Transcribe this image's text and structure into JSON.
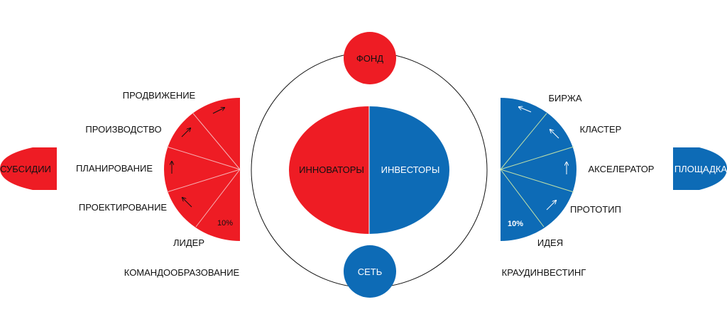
{
  "colors": {
    "red": "#ee1c24",
    "blue": "#0d6bb6",
    "line": "#111111"
  },
  "center": {
    "left_label": "ИННОВАТОРЫ",
    "right_label": "ИНВЕСТОРЫ",
    "top_node": "ФОНД",
    "bottom_node": "СЕТЬ"
  },
  "left_fan": {
    "side_node": "СУБСИДИИ",
    "percent_label": "10%",
    "stages": [
      "ЛИДЕР",
      "ПРОЕКТИРОВАНИЕ",
      "ПЛАНИРОВАНИЕ",
      "ПРОИЗВОДСТВО",
      "ПРОДВИЖЕНИЕ"
    ],
    "bottom_caption": "КОМАНДООБРАЗОВАНИЕ"
  },
  "right_fan": {
    "side_node": "ПЛОЩАДКА",
    "percent_label": "10%",
    "stages": [
      "ИДЕЯ",
      "ПРОТОТИП",
      "АКСЕЛЕРАТОР",
      "КЛАСТЕР",
      "БИРЖА"
    ],
    "bottom_caption": "КРАУДИНВЕСТИНГ"
  },
  "icons": [
    "arrow-up-right-icon",
    "arrow-up-left-icon",
    "arrow-up-icon"
  ]
}
